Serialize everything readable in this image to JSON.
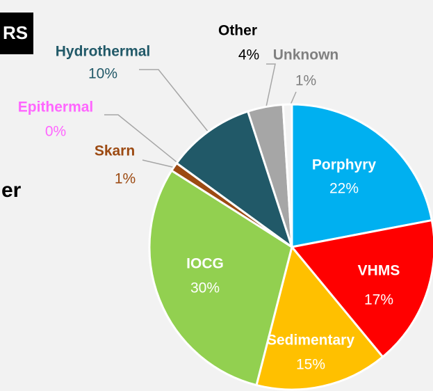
{
  "badge": "RS",
  "fragment": "er",
  "chart_data": {
    "type": "pie",
    "categories": [
      "Porphyry",
      "VHMS",
      "Sedimentary",
      "IOCG",
      "Skarn",
      "Epithermal",
      "Hydrothermal",
      "Other",
      "Unknown"
    ],
    "values": [
      22,
      17,
      15,
      30,
      1,
      0,
      10,
      4,
      1
    ],
    "value_labels": [
      "22%",
      "17%",
      "15%",
      "30%",
      "1%",
      "0%",
      "10%",
      "4%",
      "1%"
    ],
    "colors": [
      "#00b0f0",
      "#ff0000",
      "#ffc000",
      "#92d050",
      "#9c4a12",
      "#ff66ff",
      "#215968",
      "#a6a6a6",
      "#f2f2f2"
    ]
  }
}
